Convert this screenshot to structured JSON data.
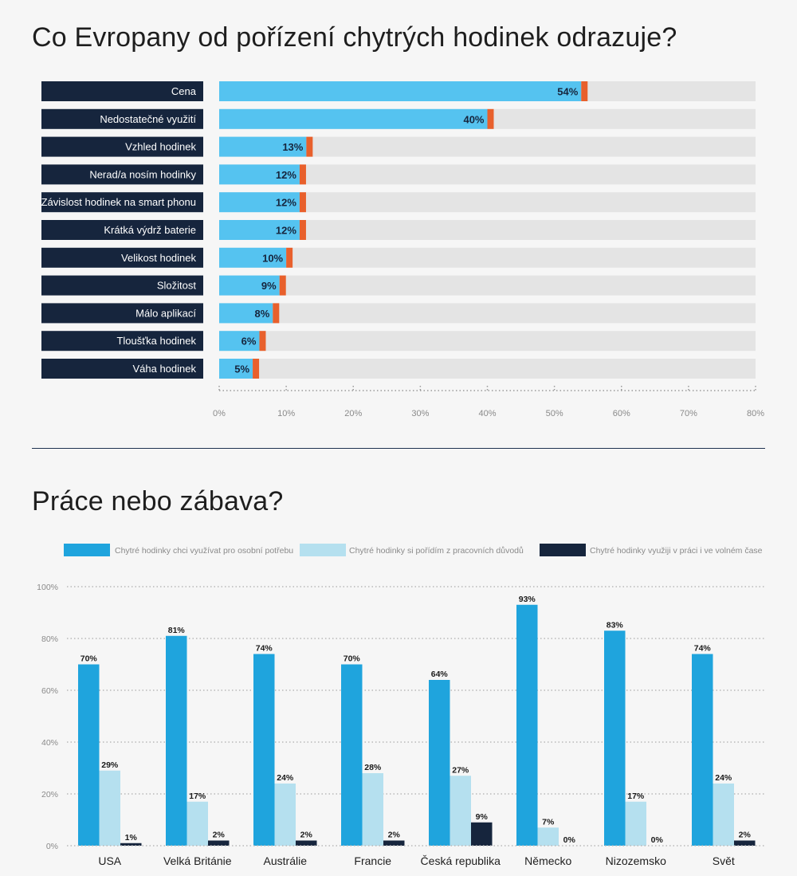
{
  "chart_data": [
    {
      "type": "bar",
      "orientation": "horizontal",
      "title": "Co Evropany od pořízení chytrých hodinek odrazuje?",
      "categories": [
        "Cena",
        "Nedostatečné využití",
        "Vzhled hodinek",
        "Nerad/a nosím hodinky",
        "Závislost hodinek na smart phonu",
        "Krátká výdrž baterie",
        "Velikost hodinek",
        "Složitost",
        "Málo aplikací",
        "Tloušťka hodinek",
        "Váha hodinek"
      ],
      "values": [
        54,
        40,
        13,
        12,
        12,
        12,
        10,
        9,
        8,
        6,
        5
      ],
      "value_labels": [
        "54%",
        "40%",
        "13%",
        "12%",
        "12%",
        "12%",
        "10%",
        "9%",
        "8%",
        "6%",
        "5%"
      ],
      "xlim": [
        0,
        80
      ],
      "x_ticks": [
        "0%",
        "10%",
        "20%",
        "30%",
        "40%",
        "50%",
        "60%",
        "70%",
        "80%"
      ],
      "colors": {
        "bar": "#55c3f0",
        "marker": "#e8602c",
        "track": "#e4e4e4",
        "label_bg": "#16253d",
        "label_text": "#ffffff"
      }
    },
    {
      "type": "bar",
      "orientation": "vertical",
      "title": "Práce nebo zábava?",
      "categories": [
        "USA",
        "Velká Británie",
        "Austrálie",
        "Francie",
        "Česká republika",
        "Německo",
        "Nizozemsko",
        "Svět"
      ],
      "series": [
        {
          "name": "Chytré hodinky chci využívat pro osobní potřebu",
          "color": "#1fa4dd",
          "values": [
            70,
            81,
            74,
            70,
            64,
            93,
            83,
            74
          ],
          "labels": [
            "70%",
            "81%",
            "74%",
            "70%",
            "64%",
            "93%",
            "83%",
            "74%"
          ]
        },
        {
          "name": "Chytré hodinky si pořídím z pracovních důvodů",
          "color": "#b5e0ef",
          "values": [
            29,
            17,
            24,
            28,
            27,
            7,
            17,
            24
          ],
          "labels": [
            "29%",
            "17%",
            "24%",
            "28%",
            "27%",
            "7%",
            "17%",
            "24%"
          ]
        },
        {
          "name": "Chytré hodinky využiji v práci i ve volném čase",
          "color": "#16253d",
          "values": [
            1,
            2,
            2,
            2,
            9,
            0,
            0,
            2
          ],
          "labels": [
            "1%",
            "2%",
            "2%",
            "2%",
            "9%",
            "0%",
            "0%",
            "2%"
          ]
        }
      ],
      "ylim": [
        0,
        100
      ],
      "y_ticks": [
        "0%",
        "20%",
        "40%",
        "60%",
        "80%",
        "100%"
      ],
      "grid": true,
      "legend": "top"
    }
  ]
}
